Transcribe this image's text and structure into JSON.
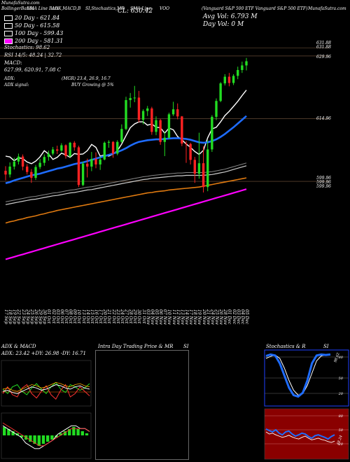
{
  "header": {
    "left_title": "MunafaSutra.com",
    "title_segments": [
      "BollingerBands",
      "EMA Line Bars",
      "ADX,MACD,B",
      "SI,Stochastics,MR",
      "SMA Line"
    ],
    "symbol": "VOO",
    "close_text": "CL: 630.42",
    "name_text": "(Vanguard S&P 500 ETF Vanguard S&P 500 ETF)",
    "site_text": "MunafaSutra.com",
    "avg_vol_text": "Avg Vol: 6.793 M",
    "day_vol_text": "Day Vol: 0   M"
  },
  "legend": [
    {
      "label": "20  Day  - 621.84",
      "color": "#000000"
    },
    {
      "label": "50  Day  - 615.58",
      "color": "#000000"
    },
    {
      "label": "100  Day  - 599.43",
      "color": "#000000"
    },
    {
      "label": "200  Day  - 581.31",
      "color": "#ff00ff"
    }
  ],
  "stats": {
    "stochastics": "Stochastics: 98.62",
    "rsi": "RSI 14/5: 48.24  | 32.72",
    "macd_label": "MACD:",
    "macd_values": "627.99,  620.91,  7.08  C",
    "adx_label": "ADX:",
    "adx_values": "(MGR) 23.4,  26.9,  16.7",
    "adx_signal_label": "ADX  signal:",
    "adx_signal_value": "BUY Growing @ 5%"
  },
  "price_labels": [
    "631.88",
    "631.88",
    "629.96",
    "614.96",
    "599.96",
    "599.96",
    "599.96"
  ],
  "dates": [
    "17 Sep",
    "18 Sep",
    "19 Sep",
    "22 Sep",
    "23 Sep",
    "24 Sep",
    "25 Sep",
    "26 Sep",
    "29 Sep",
    "30 Sep",
    "01 Oct",
    "02 Oct",
    "03 Oct",
    "06 Oct",
    "07 Oct",
    "08 Oct",
    "09 Oct",
    "10 Oct",
    "13 Oct",
    "14 Oct",
    "15 Oct",
    "16 Oct",
    "17 Oct",
    "20 Oct",
    "21 Oct",
    "22 Oct",
    "23 Oct",
    "24 Oct",
    "27 Oct",
    "28 Oct",
    "29 Oct",
    "30 Oct",
    "31 Oct",
    "03 Nov",
    "04 Nov",
    "05 Nov",
    "06 Nov",
    "07 Nov",
    "10 Nov",
    "11 Nov",
    "12 Nov",
    "13 Nov",
    "14 Nov",
    "17 Nov",
    "18 Nov",
    "19 Nov",
    "20 Nov",
    "21 Nov",
    "24 Nov",
    "25 Nov",
    "26 Nov",
    "28 Nov",
    "01 Dec",
    "02 Dec",
    "03 Dec",
    "04 Dec",
    "05 Dec"
  ],
  "chart_data": {
    "type": "candlestick",
    "x": [
      "17 Sep",
      "18 Sep",
      "19 Sep",
      "22 Sep",
      "23 Sep",
      "24 Sep",
      "25 Sep",
      "26 Sep",
      "29 Sep",
      "30 Sep",
      "01 Oct",
      "02 Oct",
      "03 Oct",
      "06 Oct",
      "07 Oct",
      "08 Oct",
      "09 Oct",
      "10 Oct",
      "13 Oct",
      "14 Oct",
      "15 Oct",
      "16 Oct",
      "17 Oct",
      "20 Oct",
      "21 Oct",
      "22 Oct",
      "23 Oct",
      "24 Oct",
      "27 Oct",
      "28 Oct",
      "29 Oct",
      "30 Oct",
      "31 Oct",
      "03 Nov",
      "04 Nov",
      "05 Nov",
      "06 Nov",
      "07 Nov",
      "10 Nov",
      "11 Nov",
      "12 Nov",
      "13 Nov",
      "14 Nov",
      "17 Nov",
      "18 Nov",
      "19 Nov",
      "20 Nov",
      "21 Nov",
      "24 Nov",
      "25 Nov",
      "26 Nov",
      "28 Nov",
      "01 Dec",
      "02 Dec",
      "03 Dec",
      "04 Dec",
      "05 Dec"
    ],
    "candles": [
      [
        602.5,
        603.6,
        600.2,
        601.6
      ],
      [
        601.6,
        604.5,
        600.9,
        603.5
      ],
      [
        603.5,
        605.6,
        602.8,
        604.7
      ],
      [
        604.7,
        606.6,
        604.0,
        605.9
      ],
      [
        605.9,
        606.4,
        602.6,
        603.5
      ],
      [
        603.5,
        604.1,
        601.6,
        602.2
      ],
      [
        602.2,
        602.9,
        599.6,
        600.8
      ],
      [
        600.8,
        603.9,
        600.3,
        603.4
      ],
      [
        603.4,
        605.3,
        602.9,
        604.4
      ],
      [
        604.4,
        606.4,
        603.7,
        605.8
      ],
      [
        605.8,
        607.3,
        604.9,
        606.6
      ],
      [
        606.6,
        608.2,
        606.2,
        607.6
      ],
      [
        607.6,
        608.5,
        606.5,
        607.3
      ],
      [
        607.3,
        609.1,
        607.0,
        608.6
      ],
      [
        608.6,
        608.8,
        605.4,
        606.0
      ],
      [
        606.0,
        609.4,
        605.7,
        609.2
      ],
      [
        609.2,
        609.6,
        607.3,
        608.1
      ],
      [
        608.1,
        608.5,
        598.6,
        599.1
      ],
      [
        599.1,
        604.7,
        598.8,
        604.2
      ],
      [
        604.2,
        605.4,
        600.9,
        603.5
      ],
      [
        603.5,
        607.0,
        602.4,
        605.3
      ],
      [
        605.3,
        606.9,
        603.1,
        604.0
      ],
      [
        604.0,
        605.9,
        602.7,
        605.2
      ],
      [
        605.2,
        609.5,
        605.0,
        609.2
      ],
      [
        609.2,
        609.8,
        608.0,
        609.4
      ],
      [
        609.4,
        609.6,
        605.6,
        606.6
      ],
      [
        606.6,
        609.8,
        606.2,
        609.4
      ],
      [
        609.4,
        613.6,
        609.2,
        612.5
      ],
      [
        612.5,
        620.2,
        612.2,
        619.4
      ],
      [
        619.4,
        621.1,
        617.6,
        619.9
      ],
      [
        619.9,
        622.8,
        618.9,
        620.0
      ],
      [
        620.0,
        621.6,
        614.1,
        614.7
      ],
      [
        614.7,
        617.2,
        613.6,
        616.8
      ],
      [
        616.8,
        618.0,
        615.6,
        617.4
      ],
      [
        617.4,
        617.8,
        611.1,
        611.8
      ],
      [
        611.8,
        615.5,
        611.0,
        614.6
      ],
      [
        614.6,
        614.9,
        608.7,
        609.4
      ],
      [
        609.4,
        611.8,
        606.0,
        610.4
      ],
      [
        610.4,
        616.4,
        610.1,
        616.0
      ],
      [
        616.0,
        619.0,
        615.6,
        617.2
      ],
      [
        617.2,
        618.6,
        614.8,
        615.5
      ],
      [
        615.5,
        615.6,
        608.4,
        609.0
      ],
      [
        609.0,
        609.6,
        604.4,
        608.9
      ],
      [
        608.9,
        609.2,
        604.0,
        605.1
      ],
      [
        605.1,
        605.8,
        599.6,
        601.8
      ],
      [
        601.8,
        611.6,
        600.6,
        604.3
      ],
      [
        604.3,
        608.4,
        597.3,
        598.6
      ],
      [
        598.6,
        609.8,
        597.6,
        607.6
      ],
      [
        607.6,
        615.8,
        607.0,
        615.4
      ],
      [
        615.4,
        619.8,
        614.6,
        619.2
      ],
      [
        619.2,
        623.7,
        618.9,
        623.4
      ],
      [
        623.4,
        625.6,
        622.9,
        625.0
      ],
      [
        625.0,
        625.9,
        622.7,
        623.5
      ],
      [
        623.5,
        625.6,
        623.0,
        625.2
      ],
      [
        625.2,
        627.4,
        624.4,
        626.6
      ],
      [
        626.6,
        628.6,
        625.9,
        627.7
      ],
      [
        627.7,
        629.5,
        626.5,
        628.7
      ]
    ],
    "series": [
      {
        "name": "20 Day",
        "color": "#ffffff",
        "values": [
          606.0,
          605.8,
          604.9,
          605.6,
          605.4,
          604.6,
          604.2,
          604.8,
          605.8,
          607.3,
          606.5,
          605.2,
          605.7,
          606.7,
          606.3,
          605.7,
          606.6,
          606.4,
          606.5,
          607.3,
          608.8,
          608.1,
          606.0,
          606.3,
          606.0,
          606.5,
          607.3,
          608.9,
          610.9,
          612.8,
          613.7,
          614.2,
          614.2,
          613.4,
          613.7,
          612.9,
          612.8,
          611.5,
          612.7,
          612.3,
          610.7,
          609.9,
          608.9,
          608.1,
          607.1,
          606.4,
          607.4,
          610.4,
          612.5,
          612.9,
          614.2,
          615.7,
          616.7,
          617.9,
          619.1,
          620.5,
          621.8
        ]
      },
      {
        "name": "50 Day",
        "color": "#1e6cff",
        "values": [
          599.5,
          599.8,
          600.2,
          600.5,
          600.8,
          601.1,
          601.4,
          601.6,
          601.8,
          602.1,
          602.4,
          602.7,
          603.0,
          603.2,
          603.5,
          603.8,
          604.1,
          604.3,
          604.5,
          604.8,
          605.1,
          605.4,
          605.7,
          606.0,
          606.3,
          606.6,
          607.0,
          607.4,
          607.9,
          608.5,
          609.0,
          609.4,
          609.6,
          609.8,
          609.9,
          610.0,
          610.0,
          610.1,
          610.2,
          610.3,
          610.3,
          610.2,
          610.1,
          609.9,
          609.6,
          609.3,
          609.2,
          609.3,
          609.6,
          610.0,
          610.6,
          611.3,
          612.1,
          612.9,
          613.8,
          614.7,
          615.6
        ]
      },
      {
        "name": "100 Day",
        "color": "#cccccc",
        "values": [
          594.4,
          594.6,
          594.8,
          595.0,
          595.2,
          595.4,
          595.6,
          595.7,
          595.9,
          596.1,
          596.3,
          596.5,
          596.6,
          596.8,
          597.0,
          597.2,
          597.3,
          597.5,
          597.7,
          597.9,
          598.0,
          598.2,
          598.4,
          598.6,
          598.8,
          599.0,
          599.2,
          599.4,
          599.6,
          599.8,
          600.0,
          600.2,
          600.4,
          600.5,
          600.7,
          600.8,
          600.9,
          601.0,
          601.1,
          601.2,
          601.3,
          601.3,
          601.4,
          601.4,
          601.4,
          601.4,
          601.4,
          601.5,
          601.6,
          601.8,
          602.0,
          602.2,
          602.5,
          602.8,
          603.1,
          603.4,
          603.7
        ]
      },
      {
        "name": "",
        "color": "#e07a10",
        "values": [
          590.0,
          590.3,
          590.5,
          590.8,
          591.0,
          591.3,
          591.5,
          591.7,
          592.0,
          592.2,
          592.5,
          592.7,
          593.0,
          593.2,
          593.4,
          593.6,
          593.8,
          594.0,
          594.2,
          594.4,
          594.6,
          594.8,
          595.0,
          595.2,
          595.4,
          595.6,
          595.8,
          596.0,
          596.2,
          596.4,
          596.6,
          596.8,
          597.0,
          597.2,
          597.3,
          597.5,
          597.6,
          597.7,
          597.9,
          598.0,
          598.1,
          598.2,
          598.3,
          598.4,
          598.5,
          598.6,
          598.8,
          599.0,
          599.2,
          599.4,
          599.6,
          599.8,
          600.0,
          600.2,
          600.4,
          600.6,
          600.8
        ]
      },
      {
        "name": "200 Day",
        "color": "#ff00ff",
        "values": [
          581.3,
          581.6,
          581.9,
          582.2,
          582.5,
          582.8,
          583.1,
          583.4,
          583.7,
          584.0,
          584.3,
          584.6,
          584.9,
          585.2,
          585.5,
          585.8,
          586.1,
          586.4,
          586.7,
          587.0,
          587.3,
          587.6,
          587.9,
          588.2,
          588.5,
          588.8,
          589.1,
          589.4,
          589.7,
          590.0,
          590.3,
          590.6,
          590.9,
          591.2,
          591.5,
          591.8,
          592.1,
          592.4,
          592.7,
          593.0,
          593.3,
          593.6,
          593.9,
          594.2,
          594.5,
          594.8,
          595.1,
          595.4,
          595.7,
          596.0,
          596.3,
          596.6,
          596.9,
          597.2,
          597.5,
          597.8,
          598.1
        ]
      }
    ],
    "ylim": [
      570,
      640
    ],
    "hlines": [
      631.88,
      629.96,
      614.96,
      599.96
    ]
  },
  "panels": {
    "adx_title": "ADX  & MACD",
    "adx_values": "ADX: 23.42  +DY: 26.98 -DY: 16.71",
    "intraday_title": "Intra  Day Trading Price  & MR",
    "intraday_right": "SI",
    "stoch_title": "Stochastics & R",
    "stoch_right": "SI",
    "stoch_val": "98.62",
    "stoch_ticks": [
      "80",
      "50",
      "20"
    ],
    "rsi_ticks": [
      "80",
      "50",
      "20"
    ],
    "rsi_val": "48.24"
  },
  "indicators": {
    "adx_line": [
      20,
      21,
      19,
      18,
      20,
      22,
      24,
      23,
      21,
      22,
      24,
      26,
      25,
      23,
      22,
      24,
      25,
      23,
      22
    ],
    "plus_di": [
      22,
      18,
      24,
      26,
      20,
      17,
      23,
      27,
      22,
      18,
      24,
      28,
      22,
      19,
      26,
      24,
      21,
      23,
      27
    ],
    "minus_di": [
      18,
      24,
      17,
      15,
      23,
      26,
      18,
      14,
      20,
      25,
      17,
      13,
      21,
      26,
      15,
      18,
      24,
      20,
      16
    ],
    "macd_hist": [
      4,
      3,
      2,
      1,
      -1,
      -2,
      -3,
      -4,
      -5,
      -4,
      -3,
      -2,
      -1,
      1,
      2,
      3,
      4,
      3,
      2,
      1
    ],
    "macd_line": [
      3,
      2,
      1,
      0,
      -1,
      -3,
      -4,
      -5,
      -5,
      -4,
      -3,
      -2,
      0,
      1,
      2,
      3,
      3,
      2,
      2,
      1
    ],
    "macd_signal": [
      4,
      3,
      2,
      1,
      0,
      -1,
      -2,
      -3,
      -4,
      -4,
      -3,
      -2,
      -1,
      0,
      1,
      2,
      2,
      2,
      2,
      1
    ],
    "stoch_k": [
      95,
      98,
      96,
      80,
      55,
      30,
      15,
      12,
      20,
      45,
      80,
      96,
      98,
      97,
      98
    ],
    "stoch_d": [
      90,
      94,
      97,
      90,
      70,
      45,
      25,
      15,
      18,
      35,
      60,
      85,
      95,
      97,
      98
    ],
    "rsi_vals": [
      62,
      58,
      55,
      60,
      52,
      48,
      55,
      57,
      50,
      45,
      48,
      52,
      50,
      44,
      40,
      46,
      48,
      45,
      42,
      38,
      44,
      48
    ],
    "mrsi_vals": [
      55,
      50,
      52,
      48,
      45,
      42,
      44,
      47,
      43,
      40,
      38,
      42,
      45,
      40,
      36,
      38,
      40,
      37,
      35,
      32,
      30,
      33
    ]
  }
}
